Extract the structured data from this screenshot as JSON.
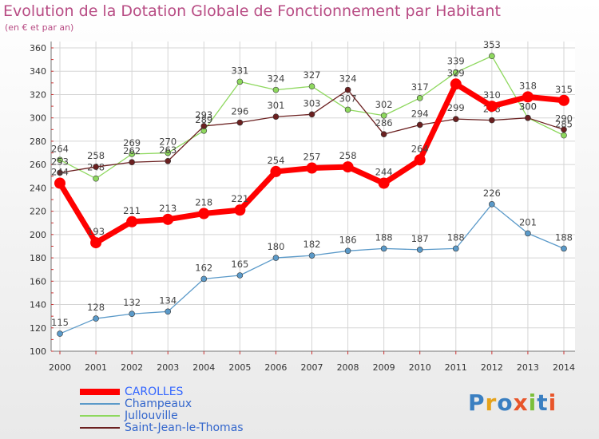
{
  "title": "Evolution de la Dotation Globale de Fonctionnement par Habitant",
  "subtitle": "(en € et par an)",
  "brand": "Proxiti",
  "colors": {
    "title": "#b84c84",
    "axis": "#777777",
    "tick_marks": "#cc3333",
    "grid": "#d5d5d5"
  },
  "chart_data": {
    "type": "line",
    "x": [
      "2000",
      "2001",
      "2002",
      "2003",
      "2004",
      "2005",
      "2006",
      "2007",
      "2008",
      "2009",
      "2010",
      "2011",
      "2012",
      "2013",
      "2014"
    ],
    "ylim": [
      100,
      360
    ],
    "yticks": [
      100,
      120,
      140,
      160,
      180,
      200,
      220,
      240,
      260,
      280,
      300,
      320,
      340,
      360
    ],
    "grid": true,
    "legend_position": "bottom-left",
    "series": [
      {
        "name": "CAROLLES",
        "color": "#ff0000",
        "values": [
          244,
          193,
          211,
          213,
          218,
          221,
          254,
          257,
          258,
          244,
          264,
          329,
          310,
          318,
          315
        ],
        "emphasis": true
      },
      {
        "name": "Champeaux",
        "color": "#5b9ac9",
        "values": [
          115,
          128,
          132,
          134,
          162,
          165,
          180,
          182,
          186,
          188,
          187,
          188,
          226,
          201,
          188
        ],
        "emphasis": false
      },
      {
        "name": "Jullouville",
        "color": "#8ed85e",
        "values": [
          264,
          248,
          269,
          270,
          289,
          331,
          324,
          327,
          307,
          302,
          317,
          339,
          353,
          300,
          285
        ],
        "emphasis": false
      },
      {
        "name": "Saint-Jean-le-Thomas",
        "color": "#6b2020",
        "values": [
          253,
          258,
          262,
          263,
          293,
          296,
          301,
          303,
          324,
          286,
          294,
          299,
          298,
          300,
          290
        ],
        "emphasis": false
      }
    ]
  }
}
